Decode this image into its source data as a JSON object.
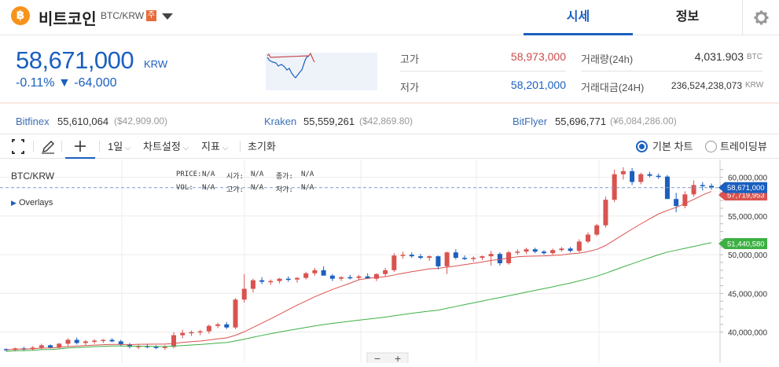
{
  "header": {
    "coin_symbol_glyph": "฿",
    "coin_name": "비트코인",
    "pair": "BTC/KRW",
    "badge": "주",
    "tabs": {
      "market": "시세",
      "info": "정보"
    },
    "settings_icon": "gear-icon",
    "brand_color": "#1b5fbf",
    "coin_color": "#f7931a"
  },
  "price": {
    "current": "58,671,000",
    "unit": "KRW",
    "change": "-0.11% ▼ -64,000",
    "down_color": "#1b5fbf",
    "up_color": "#c84a4a"
  },
  "stats": {
    "high_label": "고가",
    "high_value": "58,973,000",
    "low_label": "저가",
    "low_value": "58,201,000",
    "volume_label": "거래량(24h)",
    "volume_value": "4,031.903",
    "volume_unit": "BTC",
    "amount_label": "거래대금(24H)",
    "amount_value": "236,524,238,073",
    "amount_unit": "KRW"
  },
  "exchanges": [
    {
      "name": "Bitfinex",
      "krw": "55,610,064",
      "usd": "($42,909.00)"
    },
    {
      "name": "Kraken",
      "krw": "55,559,261",
      "usd": "($42,869.80)"
    },
    {
      "name": "BitFlyer",
      "krw": "55,696,771",
      "usd": "(¥6,084,286.00)"
    }
  ],
  "toolbar": {
    "fullscreen_icon": "fullscreen-icon",
    "draw_icon": "pencil-icon",
    "crosshair_icon": "crosshair-icon",
    "interval": "1일",
    "chart_settings": "차트설정",
    "indicators": "지표",
    "reset": "초기화",
    "mode_basic": "기본 차트",
    "mode_tradingview": "트레이딩뷰"
  },
  "chart_legend": {
    "symbol": "BTC/KRW",
    "overlays": "Overlays",
    "price_label": "PRICE:",
    "price_val": "N/A",
    "open_label": "시가:",
    "open_val": "N/A",
    "close_label": "종가:",
    "close_val": "N/A",
    "vol_label": "VOL:",
    "vol_val": "N/A",
    "high_label": "고가:",
    "high_val": "N/A",
    "low_label": "저가:",
    "low_val": "N/A"
  },
  "chart_data": {
    "type": "candlestick",
    "y_ticks": [
      "60,000,000",
      "55,000,000",
      "50,000,000",
      "45,000,000",
      "40,000,000"
    ],
    "ylim": [
      36000000,
      62300000
    ],
    "current_price_label": "58,671,000",
    "ma_red_label": "57,719,953",
    "ma_green_label": "51,440,580",
    "colors": {
      "up": "#d9534f",
      "down": "#1b5fbf",
      "ma_short": "#d9534f",
      "ma_long": "#3cb043"
    },
    "candles": [
      [
        37.8,
        37.9,
        37.5,
        37.7
      ],
      [
        37.7,
        38.0,
        37.5,
        37.9
      ],
      [
        37.9,
        38.1,
        37.6,
        37.8
      ],
      [
        37.8,
        38.2,
        37.6,
        38.0
      ],
      [
        38.0,
        38.5,
        37.8,
        38.3
      ],
      [
        38.3,
        38.4,
        37.9,
        38.0
      ],
      [
        38.0,
        38.6,
        37.9,
        38.5
      ],
      [
        38.5,
        39.2,
        38.2,
        39.0
      ],
      [
        39.0,
        39.3,
        38.4,
        38.6
      ],
      [
        38.6,
        39.0,
        38.3,
        38.8
      ],
      [
        38.8,
        39.1,
        38.5,
        38.9
      ],
      [
        38.9,
        39.1,
        38.6,
        39.0
      ],
      [
        39.0,
        39.2,
        38.7,
        38.8
      ],
      [
        38.8,
        39.0,
        38.2,
        38.4
      ],
      [
        38.4,
        38.6,
        37.9,
        38.1
      ],
      [
        38.1,
        38.4,
        37.8,
        38.2
      ],
      [
        38.2,
        38.5,
        37.9,
        38.1
      ],
      [
        38.1,
        38.3,
        37.8,
        38.0
      ],
      [
        38.0,
        38.3,
        37.7,
        38.1
      ],
      [
        38.1,
        40.0,
        37.9,
        39.6
      ],
      [
        39.6,
        40.3,
        39.2,
        39.9
      ],
      [
        39.9,
        40.2,
        39.5,
        40.0
      ],
      [
        40.0,
        40.3,
        39.6,
        40.1
      ],
      [
        40.1,
        41.0,
        39.8,
        40.8
      ],
      [
        40.8,
        41.2,
        40.5,
        41.0
      ],
      [
        41.0,
        41.3,
        40.4,
        40.6
      ],
      [
        40.6,
        44.4,
        40.4,
        44.2
      ],
      [
        44.2,
        47.5,
        43.8,
        45.6
      ],
      [
        45.6,
        46.9,
        45.1,
        46.7
      ],
      [
        46.7,
        47.1,
        46.2,
        46.5
      ],
      [
        46.5,
        46.8,
        46.1,
        46.6
      ],
      [
        46.6,
        47.0,
        46.3,
        46.9
      ],
      [
        46.9,
        47.2,
        46.5,
        46.8
      ],
      [
        46.8,
        47.1,
        46.4,
        47.0
      ],
      [
        47.0,
        47.8,
        46.8,
        47.6
      ],
      [
        47.6,
        48.3,
        47.3,
        48.0
      ],
      [
        48.0,
        48.5,
        47.6,
        47.3
      ],
      [
        47.3,
        47.5,
        46.6,
        46.9
      ],
      [
        46.9,
        47.2,
        46.6,
        47.1
      ],
      [
        47.1,
        47.4,
        46.8,
        47.0
      ],
      [
        47.0,
        47.4,
        46.7,
        47.2
      ],
      [
        47.2,
        47.6,
        46.9,
        46.9
      ],
      [
        46.9,
        47.6,
        46.6,
        47.5
      ],
      [
        47.5,
        48.3,
        47.2,
        48.0
      ],
      [
        48.0,
        50.2,
        47.8,
        49.9
      ],
      [
        49.9,
        50.4,
        49.5,
        50.0
      ],
      [
        50.0,
        50.3,
        49.6,
        49.8
      ],
      [
        49.8,
        50.1,
        49.4,
        49.6
      ],
      [
        49.6,
        49.9,
        49.2,
        49.8
      ],
      [
        49.8,
        49.9,
        48.1,
        48.5
      ],
      [
        48.5,
        50.4,
        47.5,
        50.3
      ],
      [
        50.3,
        50.7,
        49.4,
        49.6
      ],
      [
        49.6,
        49.9,
        49.3,
        49.5
      ],
      [
        49.5,
        49.8,
        49.1,
        49.6
      ],
      [
        49.6,
        49.9,
        49.3,
        49.8
      ],
      [
        49.8,
        50.5,
        48.6,
        50.1
      ],
      [
        50.1,
        50.3,
        48.6,
        48.9
      ],
      [
        48.9,
        50.5,
        48.7,
        50.3
      ],
      [
        50.3,
        50.7,
        50.0,
        50.4
      ],
      [
        50.4,
        50.9,
        50.1,
        50.7
      ],
      [
        50.7,
        50.9,
        50.2,
        50.4
      ],
      [
        50.4,
        50.6,
        50.0,
        50.2
      ],
      [
        50.2,
        50.8,
        50.0,
        50.6
      ],
      [
        50.6,
        51.0,
        50.4,
        50.8
      ],
      [
        50.8,
        51.0,
        50.3,
        50.5
      ],
      [
        50.5,
        52.0,
        50.3,
        51.7
      ],
      [
        51.7,
        52.9,
        51.5,
        52.6
      ],
      [
        52.6,
        54.0,
        52.4,
        53.8
      ],
      [
        53.8,
        57.5,
        53.5,
        57.1
      ],
      [
        57.1,
        61.0,
        56.8,
        60.4
      ],
      [
        60.4,
        61.3,
        59.7,
        60.8
      ],
      [
        60.8,
        61.2,
        59.0,
        59.4
      ],
      [
        59.4,
        60.6,
        59.1,
        60.4
      ],
      [
        60.4,
        60.7,
        60.0,
        60.2
      ],
      [
        60.2,
        60.5,
        59.8,
        60.1
      ],
      [
        60.1,
        60.3,
        57.6,
        57.2
      ],
      [
        57.2,
        58.0,
        55.5,
        56.3
      ],
      [
        56.3,
        58.2,
        56.0,
        57.8
      ],
      [
        57.8,
        59.6,
        57.5,
        59.0
      ],
      [
        59.0,
        59.4,
        58.3,
        58.9
      ],
      [
        58.9,
        59.2,
        58.4,
        58.671
      ]
    ],
    "candle_encoding": "[open, high, low, close] in millions KRW"
  }
}
